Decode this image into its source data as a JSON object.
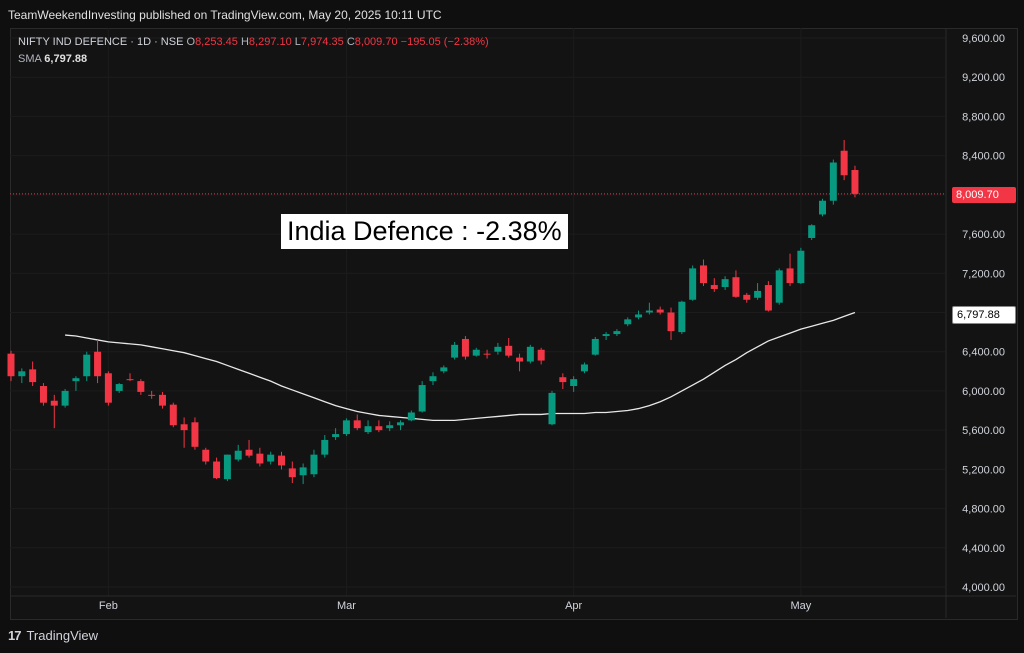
{
  "publisher_line": "TeamWeekendInvesting published on TradingView.com, May 20, 2025 10:11 UTC",
  "legend": {
    "symbol": "NIFTY IND DEFENCE · 1D · NSE",
    "open_label": "O",
    "open": "8,253.45",
    "high_label": "H",
    "high": "8,297.10",
    "low_label": "L",
    "low": "7,974.35",
    "close_label": "C",
    "close": "8,009.70",
    "change": "−195.05 (−2.38%)",
    "sma_label": "SMA",
    "sma_value": "6,797.88"
  },
  "annotation": "India Defence : -2.38%",
  "price_tags": {
    "last": "8,009.70",
    "sma": "6,797.88"
  },
  "footer": {
    "logo": "17",
    "brand": "TradingView"
  },
  "colors": {
    "up": "#089981",
    "down": "#f23645",
    "sma": "#e8e8e8",
    "background": "#131313"
  },
  "chart_data": {
    "type": "candlestick",
    "y_ticks": [
      "9,600.00",
      "9,200.00",
      "8,800.00",
      "8,400.00",
      "8,000.00",
      "7,600.00",
      "7,200.00",
      "6,800.00",
      "6,400.00",
      "6,000.00",
      "5,600.00",
      "5,200.00",
      "4,800.00",
      "4,400.00",
      "4,000.00"
    ],
    "y_tick_values": [
      9600,
      9200,
      8800,
      8400,
      8000,
      7600,
      7200,
      6800,
      6400,
      6000,
      5600,
      5200,
      4800,
      4400,
      4000
    ],
    "ylim": [
      3900,
      9700
    ],
    "x_labels": [
      {
        "label": "Feb",
        "index": 9
      },
      {
        "label": "Mar",
        "index": 31
      },
      {
        "label": "Apr",
        "index": 52
      },
      {
        "label": "May",
        "index": 73
      }
    ],
    "last_price": 8009.7,
    "candles": [
      {
        "o": 6380,
        "h": 6410,
        "l": 6100,
        "c": 6150
      },
      {
        "o": 6150,
        "h": 6230,
        "l": 6080,
        "c": 6200
      },
      {
        "o": 6220,
        "h": 6300,
        "l": 6050,
        "c": 6090
      },
      {
        "o": 6050,
        "h": 6080,
        "l": 5850,
        "c": 5880
      },
      {
        "o": 5900,
        "h": 5960,
        "l": 5620,
        "c": 5850
      },
      {
        "o": 5850,
        "h": 6020,
        "l": 5830,
        "c": 6000
      },
      {
        "o": 6100,
        "h": 6150,
        "l": 6000,
        "c": 6130
      },
      {
        "o": 6150,
        "h": 6400,
        "l": 6100,
        "c": 6370
      },
      {
        "o": 6400,
        "h": 6520,
        "l": 6080,
        "c": 6150
      },
      {
        "o": 6180,
        "h": 6200,
        "l": 5850,
        "c": 5880
      },
      {
        "o": 6000,
        "h": 6080,
        "l": 5980,
        "c": 6070
      },
      {
        "o": 6120,
        "h": 6180,
        "l": 6100,
        "c": 6110
      },
      {
        "o": 6100,
        "h": 6120,
        "l": 5960,
        "c": 5990
      },
      {
        "o": 5960,
        "h": 6000,
        "l": 5920,
        "c": 5950
      },
      {
        "o": 5960,
        "h": 5990,
        "l": 5820,
        "c": 5850
      },
      {
        "o": 5860,
        "h": 5880,
        "l": 5630,
        "c": 5650
      },
      {
        "o": 5660,
        "h": 5730,
        "l": 5420,
        "c": 5600
      },
      {
        "o": 5680,
        "h": 5730,
        "l": 5400,
        "c": 5430
      },
      {
        "o": 5400,
        "h": 5420,
        "l": 5250,
        "c": 5280
      },
      {
        "o": 5280,
        "h": 5320,
        "l": 5100,
        "c": 5110
      },
      {
        "o": 5100,
        "h": 5350,
        "l": 5080,
        "c": 5350
      },
      {
        "o": 5300,
        "h": 5450,
        "l": 5280,
        "c": 5390
      },
      {
        "o": 5400,
        "h": 5500,
        "l": 5320,
        "c": 5340
      },
      {
        "o": 5360,
        "h": 5420,
        "l": 5230,
        "c": 5260
      },
      {
        "o": 5280,
        "h": 5380,
        "l": 5250,
        "c": 5350
      },
      {
        "o": 5340,
        "h": 5380,
        "l": 5200,
        "c": 5240
      },
      {
        "o": 5210,
        "h": 5280,
        "l": 5060,
        "c": 5120
      },
      {
        "o": 5140,
        "h": 5260,
        "l": 5050,
        "c": 5220
      },
      {
        "o": 5150,
        "h": 5400,
        "l": 5120,
        "c": 5350
      },
      {
        "o": 5350,
        "h": 5550,
        "l": 5320,
        "c": 5500
      },
      {
        "o": 5530,
        "h": 5620,
        "l": 5500,
        "c": 5560
      },
      {
        "o": 5560,
        "h": 5720,
        "l": 5540,
        "c": 5700
      },
      {
        "o": 5700,
        "h": 5760,
        "l": 5600,
        "c": 5620
      },
      {
        "o": 5580,
        "h": 5700,
        "l": 5560,
        "c": 5640
      },
      {
        "o": 5640,
        "h": 5700,
        "l": 5580,
        "c": 5600
      },
      {
        "o": 5620,
        "h": 5690,
        "l": 5590,
        "c": 5650
      },
      {
        "o": 5650,
        "h": 5700,
        "l": 5600,
        "c": 5680
      },
      {
        "o": 5700,
        "h": 5800,
        "l": 5690,
        "c": 5780
      },
      {
        "o": 5790,
        "h": 6100,
        "l": 5780,
        "c": 6060
      },
      {
        "o": 6100,
        "h": 6190,
        "l": 6060,
        "c": 6150
      },
      {
        "o": 6200,
        "h": 6260,
        "l": 6180,
        "c": 6240
      },
      {
        "o": 6340,
        "h": 6500,
        "l": 6320,
        "c": 6470
      },
      {
        "o": 6530,
        "h": 6560,
        "l": 6320,
        "c": 6350
      },
      {
        "o": 6360,
        "h": 6440,
        "l": 6350,
        "c": 6420
      },
      {
        "o": 6380,
        "h": 6420,
        "l": 6330,
        "c": 6370
      },
      {
        "o": 6400,
        "h": 6490,
        "l": 6370,
        "c": 6450
      },
      {
        "o": 6460,
        "h": 6540,
        "l": 6340,
        "c": 6360
      },
      {
        "o": 6340,
        "h": 6380,
        "l": 6200,
        "c": 6300
      },
      {
        "o": 6300,
        "h": 6470,
        "l": 6280,
        "c": 6450
      },
      {
        "o": 6420,
        "h": 6440,
        "l": 6270,
        "c": 6310
      },
      {
        "o": 5660,
        "h": 6000,
        "l": 5650,
        "c": 5980
      },
      {
        "o": 6140,
        "h": 6180,
        "l": 6020,
        "c": 6090
      },
      {
        "o": 6050,
        "h": 6150,
        "l": 5990,
        "c": 6120
      },
      {
        "o": 6200,
        "h": 6290,
        "l": 6180,
        "c": 6270
      },
      {
        "o": 6370,
        "h": 6550,
        "l": 6360,
        "c": 6530
      },
      {
        "o": 6560,
        "h": 6600,
        "l": 6520,
        "c": 6580
      },
      {
        "o": 6580,
        "h": 6630,
        "l": 6560,
        "c": 6610
      },
      {
        "o": 6680,
        "h": 6750,
        "l": 6660,
        "c": 6730
      },
      {
        "o": 6750,
        "h": 6820,
        "l": 6730,
        "c": 6780
      },
      {
        "o": 6800,
        "h": 6900,
        "l": 6780,
        "c": 6820
      },
      {
        "o": 6830,
        "h": 6860,
        "l": 6780,
        "c": 6800
      },
      {
        "o": 6800,
        "h": 6850,
        "l": 6520,
        "c": 6610
      },
      {
        "o": 6600,
        "h": 6920,
        "l": 6580,
        "c": 6910
      },
      {
        "o": 6930,
        "h": 7280,
        "l": 6920,
        "c": 7250
      },
      {
        "o": 7280,
        "h": 7340,
        "l": 7070,
        "c": 7100
      },
      {
        "o": 7080,
        "h": 7150,
        "l": 7010,
        "c": 7040
      },
      {
        "o": 7060,
        "h": 7170,
        "l": 7030,
        "c": 7140
      },
      {
        "o": 7160,
        "h": 7230,
        "l": 6950,
        "c": 6960
      },
      {
        "o": 6980,
        "h": 7000,
        "l": 6900,
        "c": 6930
      },
      {
        "o": 6950,
        "h": 7100,
        "l": 6930,
        "c": 7020
      },
      {
        "o": 7080,
        "h": 7120,
        "l": 6810,
        "c": 6820
      },
      {
        "o": 6900,
        "h": 7250,
        "l": 6880,
        "c": 7230
      },
      {
        "o": 7250,
        "h": 7400,
        "l": 7070,
        "c": 7100
      },
      {
        "o": 7100,
        "h": 7460,
        "l": 7090,
        "c": 7430
      },
      {
        "o": 7560,
        "h": 7700,
        "l": 7540,
        "c": 7690
      },
      {
        "o": 7800,
        "h": 7960,
        "l": 7780,
        "c": 7940
      },
      {
        "o": 7940,
        "h": 8360,
        "l": 7900,
        "c": 8330
      },
      {
        "o": 8450,
        "h": 8560,
        "l": 8150,
        "c": 8200
      },
      {
        "o": 8253.45,
        "h": 8297.1,
        "l": 7974.35,
        "c": 8009.7
      }
    ],
    "sma": [
      6570,
      6560,
      6540,
      6520,
      6500,
      6490,
      6480,
      6470,
      6450,
      6430,
      6410,
      6390,
      6360,
      6330,
      6300,
      6260,
      6220,
      6180,
      6140,
      6100,
      6050,
      6010,
      5970,
      5930,
      5890,
      5850,
      5820,
      5790,
      5770,
      5750,
      5740,
      5730,
      5720,
      5710,
      5700,
      5700,
      5700,
      5710,
      5720,
      5730,
      5740,
      5750,
      5760,
      5760,
      5760,
      5770,
      5770,
      5770,
      5770,
      5780,
      5780,
      5790,
      5800,
      5820,
      5850,
      5890,
      5940,
      6000,
      6060,
      6120,
      6190,
      6260,
      6320,
      6390,
      6450,
      6510,
      6550,
      6590,
      6630,
      6660,
      6690,
      6720,
      6760,
      6800
    ]
  }
}
